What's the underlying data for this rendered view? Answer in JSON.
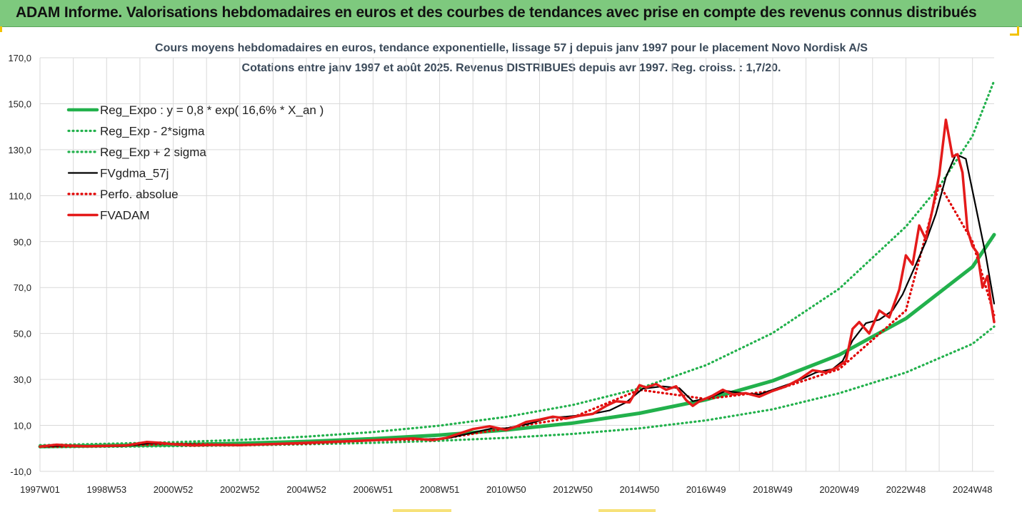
{
  "banner": {
    "title": "ADAM Informe. Valorisations hebdomadaires en euros et des courbes de tendances avec prise en compte des revenus connus distribués"
  },
  "colors": {
    "banner_bg": "#7ec97e",
    "reg_expo": "#22b14c",
    "band": "#22b14c",
    "fvgdma": "#000000",
    "perfo": "#e00000",
    "fvadam": "#e41a1a",
    "grid": "#d9d9d9"
  },
  "chart_data": {
    "type": "line",
    "title": "Cours moyens hebdomadaires en euros, tendance exponentielle, lissage 57 j depuis janv 1997 pour le placement Novo Nordisk A/S",
    "subtitle": "Cotations entre janv 1997 et août 2025. Revenus DISTRIBUES depuis avr 1997. Reg. croiss. : 1,7/20.",
    "xlabel": "",
    "ylabel": "",
    "ylim": [
      -10,
      170
    ],
    "y_ticks": [
      "-10,0",
      "10,0",
      "30,0",
      "50,0",
      "70,0",
      "90,0",
      "110,0",
      "130,0",
      "150,0",
      "170,0"
    ],
    "x_range": [
      1997.0,
      2025.65
    ],
    "x_ticks": [
      {
        "label": "1997W01",
        "x": 1997.0
      },
      {
        "label": "1998W53",
        "x": 1999.0
      },
      {
        "label": "2000W52",
        "x": 2001.0
      },
      {
        "label": "2002W52",
        "x": 2003.0
      },
      {
        "label": "2004W52",
        "x": 2005.0
      },
      {
        "label": "2006W51",
        "x": 2007.0
      },
      {
        "label": "2008W51",
        "x": 2009.0
      },
      {
        "label": "2010W50",
        "x": 2011.0
      },
      {
        "label": "2012W50",
        "x": 2013.0
      },
      {
        "label": "2014W50",
        "x": 2015.0
      },
      {
        "label": "2016W49",
        "x": 2017.0
      },
      {
        "label": "2018W49",
        "x": 2019.0
      },
      {
        "label": "2020W49",
        "x": 2021.0
      },
      {
        "label": "2022W48",
        "x": 2023.0
      },
      {
        "label": "2024W48",
        "x": 2025.0
      }
    ],
    "grid": true,
    "legend_position": "top-left",
    "series": [
      {
        "name": "Reg_Expo : y = 0,8 * exp( 16,6% *  X_an )",
        "style": "solid-thick",
        "color": "#22b14c",
        "x": [
          1997,
          1999,
          2001,
          2003,
          2005,
          2007,
          2009,
          2011,
          2013,
          2015,
          2017,
          2019,
          2021,
          2023,
          2025,
          2025.65
        ],
        "y": [
          0.8,
          1.2,
          1.6,
          2.2,
          3.0,
          4.2,
          5.8,
          8.0,
          11.0,
          15.3,
          21.2,
          29.4,
          40.7,
          56.5,
          79.0,
          93.0
        ]
      },
      {
        "name": "Reg_Exp - 2*sigma",
        "style": "dotted",
        "color": "#22b14c",
        "x": [
          1997,
          1999,
          2001,
          2003,
          2005,
          2007,
          2009,
          2011,
          2013,
          2015,
          2017,
          2019,
          2021,
          2023,
          2025,
          2025.65
        ],
        "y": [
          0.5,
          0.7,
          1.0,
          1.3,
          1.8,
          2.4,
          3.3,
          4.6,
          6.3,
          8.7,
          12.2,
          17.0,
          24.0,
          33.0,
          45.5,
          53.0
        ]
      },
      {
        "name": "Reg_Exp + 2 sigma",
        "style": "dotted",
        "color": "#22b14c",
        "x": [
          1997,
          1999,
          2001,
          2003,
          2005,
          2007,
          2009,
          2011,
          2013,
          2015,
          2017,
          2019,
          2021,
          2023,
          2024,
          2025,
          2025.65
        ],
        "y": [
          1.4,
          2.0,
          2.7,
          3.7,
          5.1,
          7.1,
          9.9,
          13.7,
          18.9,
          26.1,
          36.2,
          50.2,
          69.5,
          96.5,
          114.0,
          136.0,
          160.0
        ]
      },
      {
        "name": "FVgdma_57j",
        "style": "solid",
        "color": "#000000",
        "x": [
          1997,
          1997.8,
          1998.5,
          1999.5,
          2000.3,
          2000.8,
          2001.6,
          2002.8,
          2004.0,
          2005.0,
          2006.0,
          2007.0,
          2008.0,
          2008.7,
          2009.2,
          2009.8,
          2010.6,
          2011.0,
          2011.7,
          2012.3,
          2012.8,
          2013.5,
          2014.1,
          2014.6,
          2015.1,
          2015.7,
          2016.2,
          2016.6,
          2017.1,
          2017.6,
          2018.1,
          2018.6,
          2019.1,
          2019.7,
          2020.3,
          2020.8,
          2021.1,
          2021.4,
          2021.8,
          2022.2,
          2022.6,
          2022.9,
          2023.3,
          2023.6,
          2023.9,
          2024.2,
          2024.5,
          2024.8,
          2025.1,
          2025.4,
          2025.65
        ],
        "y": [
          0.7,
          1.2,
          1.0,
          1.0,
          2.2,
          2.0,
          1.6,
          1.4,
          1.7,
          2.2,
          2.8,
          3.5,
          4.2,
          4.0,
          4.3,
          6.2,
          8.8,
          8.7,
          10.8,
          13.3,
          13.8,
          14.8,
          16.5,
          20.0,
          26.0,
          27.0,
          26.2,
          20.5,
          22.0,
          25.0,
          24.0,
          23.5,
          26.0,
          29.0,
          33.0,
          34.5,
          38.0,
          47.0,
          54.5,
          56.0,
          60.0,
          67.0,
          80.0,
          90.0,
          102.0,
          118.0,
          128.0,
          126.0,
          105.0,
          84.0,
          63.0
        ]
      },
      {
        "name": "Perfo. absolue",
        "style": "dotted",
        "color": "#e00000",
        "x": [
          1997,
          1999,
          2001,
          2003,
          2005,
          2007,
          2009,
          2011,
          2013,
          2015,
          2017,
          2019,
          2021,
          2023,
          2024,
          2025,
          2025.65
        ],
        "y": [
          0.7,
          1.0,
          2.0,
          1.5,
          2.0,
          3.5,
          4.0,
          8.7,
          13.5,
          25.5,
          21.5,
          25.0,
          34.5,
          60.0,
          115.0,
          90.0,
          58.0
        ]
      },
      {
        "name": "FVADAM",
        "style": "solid-thick",
        "color": "#e41a1a",
        "x": [
          1997,
          1997.5,
          1997.9,
          1998.4,
          1999.0,
          1999.6,
          2000.2,
          2000.6,
          2001.0,
          2001.6,
          2002.3,
          2003.0,
          2003.8,
          2004.6,
          2005.3,
          2006.0,
          2006.8,
          2007.5,
          2008.2,
          2008.8,
          2009.2,
          2009.6,
          2010.0,
          2010.5,
          2011.0,
          2011.3,
          2011.6,
          2012.0,
          2012.4,
          2012.8,
          2013.2,
          2013.6,
          2014.0,
          2014.3,
          2014.7,
          2015.0,
          2015.2,
          2015.5,
          2015.8,
          2016.1,
          2016.4,
          2016.6,
          2016.8,
          2017.2,
          2017.5,
          2017.8,
          2018.2,
          2018.6,
          2019.0,
          2019.4,
          2019.8,
          2020.2,
          2020.6,
          2020.9,
          2021.2,
          2021.4,
          2021.6,
          2021.9,
          2022.2,
          2022.5,
          2022.8,
          2023.0,
          2023.2,
          2023.4,
          2023.6,
          2023.8,
          2024.0,
          2024.2,
          2024.4,
          2024.55,
          2024.7,
          2024.85,
          2025.0,
          2025.15,
          2025.3,
          2025.45,
          2025.55,
          2025.65
        ],
        "y": [
          0.8,
          1.6,
          1.2,
          0.9,
          1.1,
          1.3,
          2.8,
          2.4,
          1.8,
          1.3,
          1.5,
          1.4,
          1.8,
          2.2,
          2.6,
          3.0,
          3.4,
          3.9,
          4.3,
          3.6,
          4.6,
          6.5,
          8.4,
          9.6,
          8.0,
          9.5,
          11.5,
          12.5,
          13.8,
          13.0,
          14.2,
          15.0,
          18.5,
          20.5,
          20.0,
          27.5,
          26.5,
          28.0,
          25.5,
          27.0,
          21.0,
          18.5,
          20.5,
          23.0,
          25.5,
          23.5,
          24.0,
          22.5,
          25.0,
          27.0,
          30.0,
          34.0,
          33.0,
          35.0,
          38.0,
          52.0,
          55.0,
          50.0,
          60.0,
          57.0,
          69.0,
          84.0,
          80.0,
          97.0,
          91.0,
          104.0,
          119.0,
          143.0,
          127.0,
          128.0,
          120.0,
          95.0,
          88.0,
          85.0,
          70.0,
          75.0,
          64.0,
          55.0
        ]
      }
    ]
  }
}
